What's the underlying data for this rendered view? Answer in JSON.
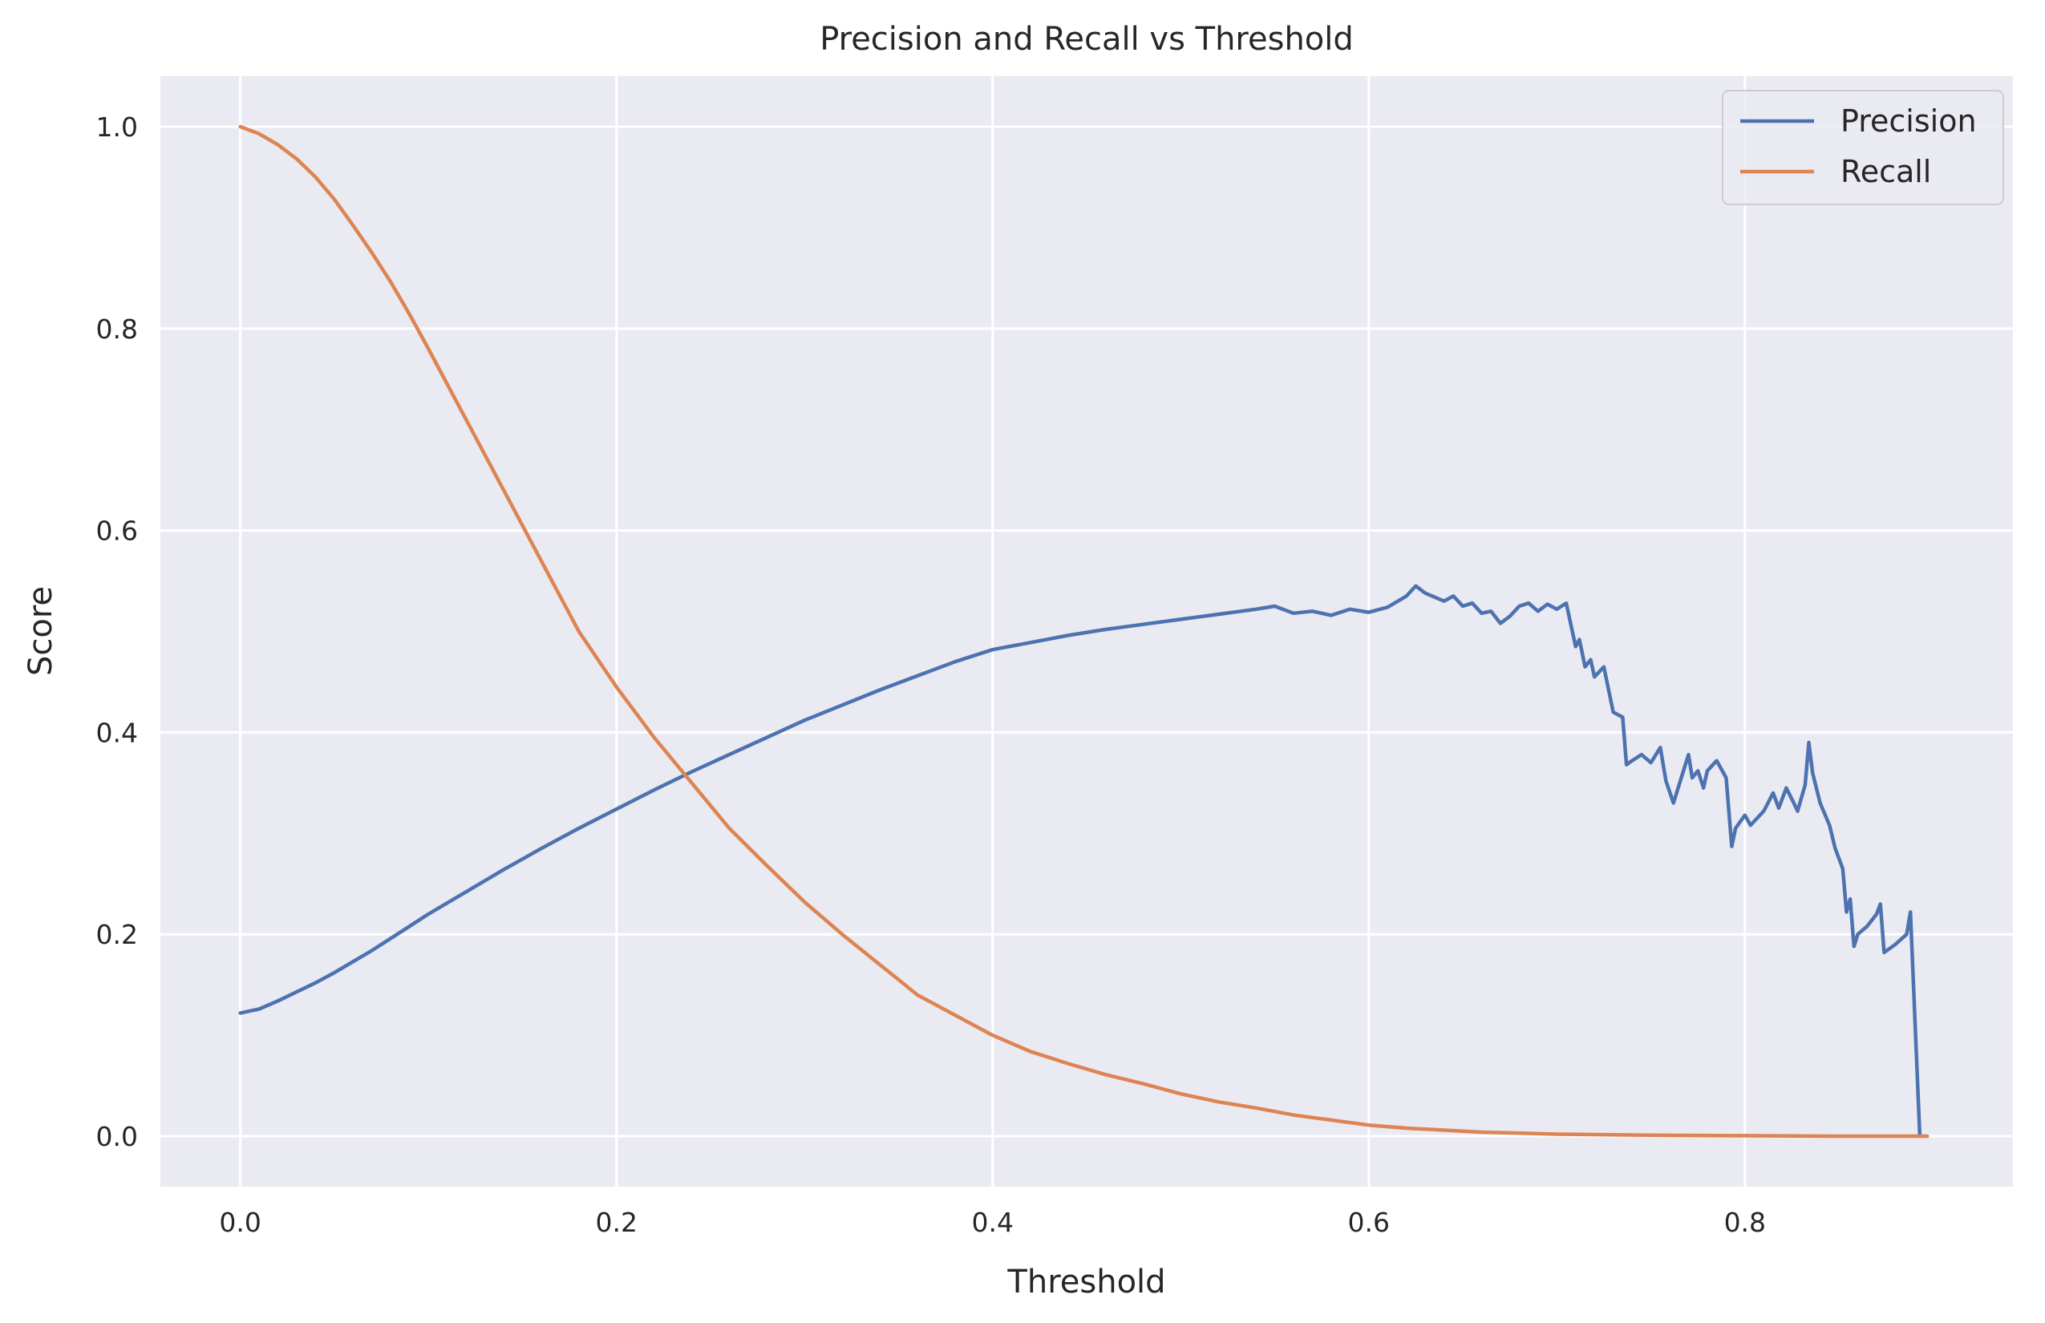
{
  "chart_data": {
    "type": "line",
    "title": "Precision and Recall vs Threshold",
    "xlabel": "Threshold",
    "ylabel": "Score",
    "xlim": [
      -0.0425,
      0.9425
    ],
    "ylim": [
      -0.05,
      1.05
    ],
    "xticks": [
      0.0,
      0.2,
      0.4,
      0.6,
      0.8
    ],
    "yticks": [
      0.0,
      0.2,
      0.4,
      0.6,
      0.8,
      1.0
    ],
    "xtick_labels": [
      "0.0",
      "0.2",
      "0.4",
      "0.6",
      "0.8"
    ],
    "ytick_labels": [
      "0.0",
      "0.2",
      "0.4",
      "0.6",
      "0.8",
      "1.0"
    ],
    "grid": true,
    "legend": "top-right",
    "background": "#eaeaf2",
    "series": [
      {
        "name": "Precision",
        "color": "#4c72b0",
        "points": [
          [
            0.0,
            0.122
          ],
          [
            0.01,
            0.126
          ],
          [
            0.02,
            0.134
          ],
          [
            0.03,
            0.143
          ],
          [
            0.04,
            0.152
          ],
          [
            0.05,
            0.162
          ],
          [
            0.06,
            0.173
          ],
          [
            0.07,
            0.184
          ],
          [
            0.08,
            0.196
          ],
          [
            0.09,
            0.208
          ],
          [
            0.1,
            0.22
          ],
          [
            0.12,
            0.242
          ],
          [
            0.14,
            0.264
          ],
          [
            0.16,
            0.285
          ],
          [
            0.18,
            0.305
          ],
          [
            0.2,
            0.324
          ],
          [
            0.22,
            0.343
          ],
          [
            0.24,
            0.361
          ],
          [
            0.26,
            0.378
          ],
          [
            0.28,
            0.395
          ],
          [
            0.3,
            0.412
          ],
          [
            0.32,
            0.427
          ],
          [
            0.34,
            0.442
          ],
          [
            0.36,
            0.456
          ],
          [
            0.38,
            0.47
          ],
          [
            0.4,
            0.482
          ],
          [
            0.42,
            0.489
          ],
          [
            0.44,
            0.496
          ],
          [
            0.46,
            0.502
          ],
          [
            0.48,
            0.507
          ],
          [
            0.5,
            0.512
          ],
          [
            0.52,
            0.517
          ],
          [
            0.54,
            0.522
          ],
          [
            0.55,
            0.525
          ],
          [
            0.56,
            0.518
          ],
          [
            0.57,
            0.52
          ],
          [
            0.58,
            0.516
          ],
          [
            0.59,
            0.522
          ],
          [
            0.6,
            0.519
          ],
          [
            0.61,
            0.524
          ],
          [
            0.62,
            0.535
          ],
          [
            0.625,
            0.545
          ],
          [
            0.63,
            0.538
          ],
          [
            0.64,
            0.53
          ],
          [
            0.645,
            0.535
          ],
          [
            0.65,
            0.525
          ],
          [
            0.655,
            0.528
          ],
          [
            0.66,
            0.518
          ],
          [
            0.665,
            0.52
          ],
          [
            0.67,
            0.508
          ],
          [
            0.675,
            0.515
          ],
          [
            0.68,
            0.525
          ],
          [
            0.685,
            0.528
          ],
          [
            0.69,
            0.52
          ],
          [
            0.695,
            0.527
          ],
          [
            0.7,
            0.522
          ],
          [
            0.705,
            0.528
          ],
          [
            0.71,
            0.485
          ],
          [
            0.712,
            0.492
          ],
          [
            0.715,
            0.465
          ],
          [
            0.718,
            0.472
          ],
          [
            0.72,
            0.455
          ],
          [
            0.725,
            0.465
          ],
          [
            0.73,
            0.42
          ],
          [
            0.735,
            0.415
          ],
          [
            0.737,
            0.368
          ],
          [
            0.74,
            0.372
          ],
          [
            0.745,
            0.378
          ],
          [
            0.75,
            0.37
          ],
          [
            0.755,
            0.385
          ],
          [
            0.758,
            0.352
          ],
          [
            0.762,
            0.33
          ],
          [
            0.765,
            0.348
          ],
          [
            0.77,
            0.378
          ],
          [
            0.772,
            0.355
          ],
          [
            0.775,
            0.362
          ],
          [
            0.778,
            0.345
          ],
          [
            0.78,
            0.362
          ],
          [
            0.785,
            0.372
          ],
          [
            0.79,
            0.355
          ],
          [
            0.793,
            0.287
          ],
          [
            0.795,
            0.305
          ],
          [
            0.8,
            0.318
          ],
          [
            0.803,
            0.308
          ],
          [
            0.81,
            0.322
          ],
          [
            0.815,
            0.34
          ],
          [
            0.818,
            0.325
          ],
          [
            0.822,
            0.345
          ],
          [
            0.826,
            0.33
          ],
          [
            0.828,
            0.322
          ],
          [
            0.832,
            0.348
          ],
          [
            0.834,
            0.39
          ],
          [
            0.836,
            0.36
          ],
          [
            0.84,
            0.33
          ],
          [
            0.845,
            0.308
          ],
          [
            0.848,
            0.285
          ],
          [
            0.852,
            0.265
          ],
          [
            0.854,
            0.222
          ],
          [
            0.856,
            0.235
          ],
          [
            0.858,
            0.188
          ],
          [
            0.86,
            0.2
          ],
          [
            0.865,
            0.208
          ],
          [
            0.87,
            0.22
          ],
          [
            0.872,
            0.23
          ],
          [
            0.874,
            0.182
          ],
          [
            0.88,
            0.19
          ],
          [
            0.886,
            0.2
          ],
          [
            0.888,
            0.222
          ],
          [
            0.893,
            0.0
          ]
        ]
      },
      {
        "name": "Recall",
        "color": "#dd8452",
        "points": [
          [
            0.0,
            1.0
          ],
          [
            0.01,
            0.993
          ],
          [
            0.02,
            0.982
          ],
          [
            0.03,
            0.968
          ],
          [
            0.04,
            0.95
          ],
          [
            0.05,
            0.928
          ],
          [
            0.06,
            0.902
          ],
          [
            0.07,
            0.875
          ],
          [
            0.08,
            0.846
          ],
          [
            0.09,
            0.814
          ],
          [
            0.1,
            0.78
          ],
          [
            0.12,
            0.71
          ],
          [
            0.14,
            0.64
          ],
          [
            0.16,
            0.57
          ],
          [
            0.18,
            0.5
          ],
          [
            0.2,
            0.445
          ],
          [
            0.22,
            0.395
          ],
          [
            0.24,
            0.35
          ],
          [
            0.26,
            0.305
          ],
          [
            0.28,
            0.268
          ],
          [
            0.3,
            0.232
          ],
          [
            0.32,
            0.2
          ],
          [
            0.34,
            0.17
          ],
          [
            0.35,
            0.155
          ],
          [
            0.36,
            0.14
          ],
          [
            0.38,
            0.12
          ],
          [
            0.4,
            0.1
          ],
          [
            0.42,
            0.084
          ],
          [
            0.44,
            0.072
          ],
          [
            0.46,
            0.061
          ],
          [
            0.48,
            0.052
          ],
          [
            0.5,
            0.042
          ],
          [
            0.52,
            0.034
          ],
          [
            0.54,
            0.028
          ],
          [
            0.56,
            0.021
          ],
          [
            0.58,
            0.016
          ],
          [
            0.6,
            0.011
          ],
          [
            0.62,
            0.008
          ],
          [
            0.64,
            0.006
          ],
          [
            0.66,
            0.004
          ],
          [
            0.7,
            0.002
          ],
          [
            0.75,
            0.001
          ],
          [
            0.8,
            0.0005
          ],
          [
            0.85,
            0.0
          ],
          [
            0.897,
            0.0
          ]
        ]
      }
    ]
  }
}
